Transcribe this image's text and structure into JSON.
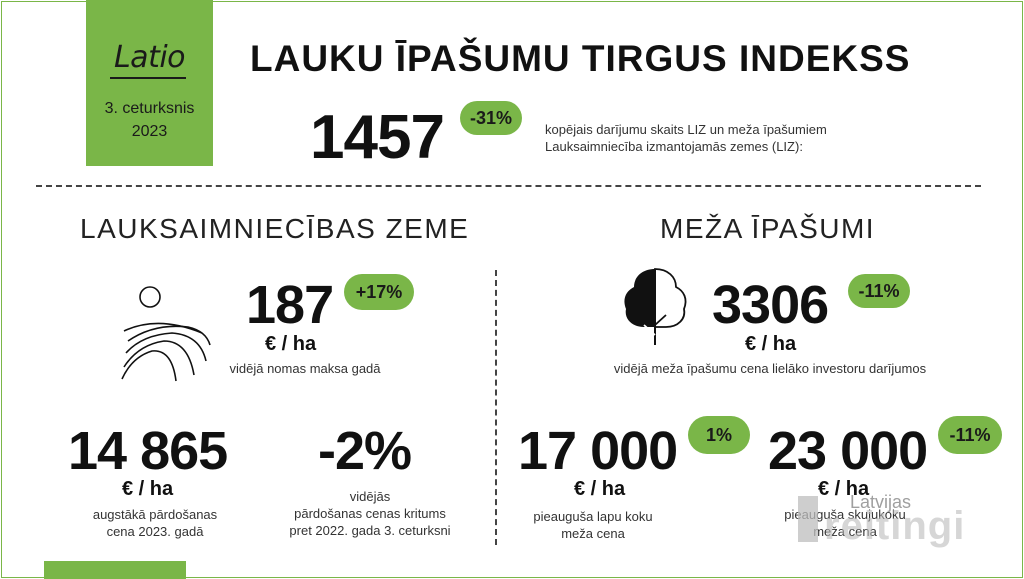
{
  "brand": {
    "logo": "Latio",
    "quarter": "3. ceturksnis",
    "year": "2023"
  },
  "header": {
    "title": "LAUKU ĪPAŠUMU TIRGUS INDEKSS",
    "total_deals": "1457",
    "total_change": "-31%",
    "total_desc_line1": "kopējais darījumu skaits LIZ un meža īpašumiem",
    "total_desc_line2": "Lauksaimniecība izmantojamās zemes (LIZ):"
  },
  "agri": {
    "title": "LAUKSAIMNIECĪBAS ZEME",
    "rent_value": "187",
    "rent_change": "+17%",
    "rent_unit": "€ / ha",
    "rent_caption": "vidējā nomas maksa gadā",
    "top_price_value": "14 865",
    "top_price_unit": "€ / ha",
    "top_price_caption_line1": "augstākā pārdošanas",
    "top_price_caption_line2": "cena 2023. gadā",
    "avg_change_value": "-2%",
    "avg_change_caption_line1": "vidējās",
    "avg_change_caption_line2": "pārdošanas cenas kritums",
    "avg_change_caption_line3": "pret 2022. gada 3. ceturksni",
    "icons": [
      "sun-icon",
      "field-icon"
    ]
  },
  "forest": {
    "title": "MEŽA ĪPAŠUMI",
    "price_value": "3306",
    "price_change": "-11%",
    "price_unit": "€ / ha",
    "price_caption": "vidējā meža īpašumu cena lielāko investoru darījumos",
    "deciduous_value": "17 000",
    "deciduous_change": "1%",
    "deciduous_unit": "€ / ha",
    "deciduous_caption_line1": "pieauguša lapu koku",
    "deciduous_caption_line2": "meža cena",
    "conifer_value": "23 000",
    "conifer_change": "-11%",
    "conifer_unit": "€ / ha",
    "conifer_caption_line1": "pieauguša skujukoku",
    "conifer_caption_line2": "meža cena",
    "icons": [
      "tree-icon"
    ]
  },
  "watermark": {
    "small": "Latvijas",
    "big": "reitingi"
  },
  "colors": {
    "accent": "#7ab648",
    "text": "#111111",
    "caption": "#333333"
  }
}
